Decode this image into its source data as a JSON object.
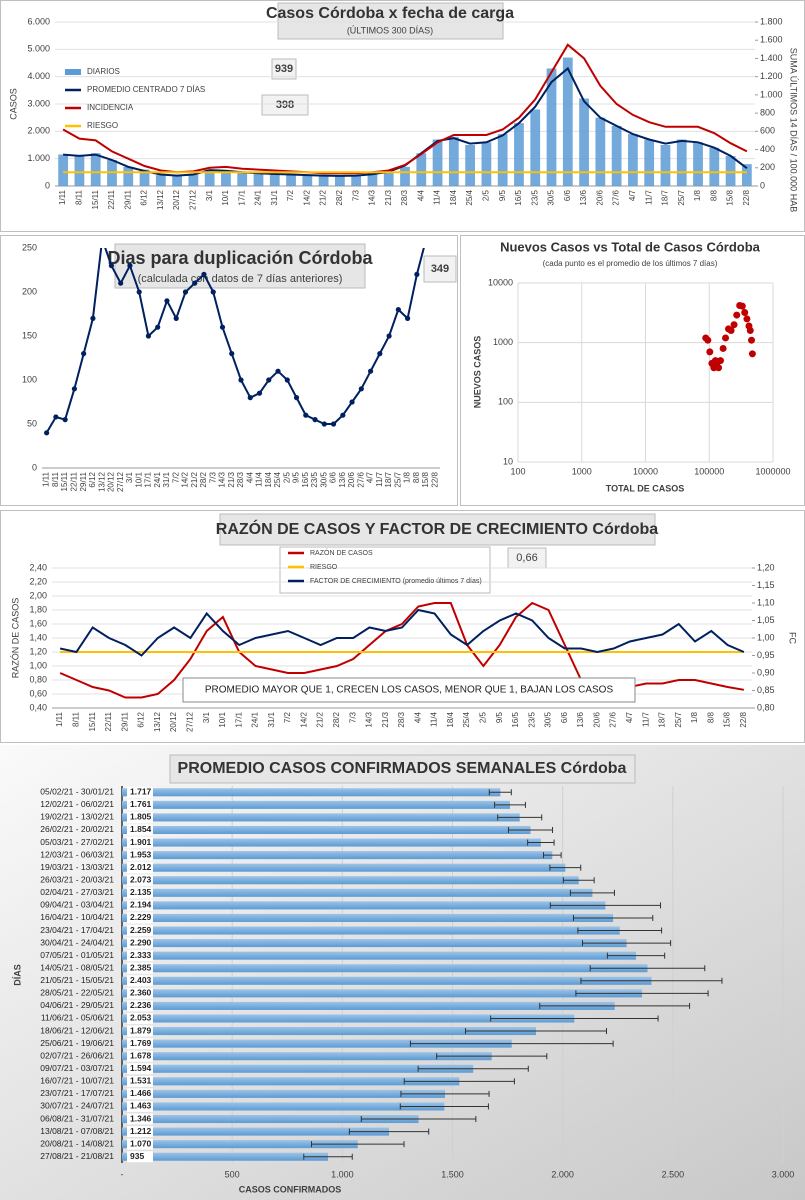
{
  "chart_data": [
    {
      "type": "bar",
      "title": "Casos  Córdoba  x fecha de carga",
      "subtitle": "(ÚLTIMOS 300 DÍAS)",
      "ylabel": "CASOS",
      "y2label": "SUMA  ÚLTIMOS 14 DÍAS / 100.000 HAB",
      "annotations": [
        "939",
        "398"
      ],
      "grid": true,
      "categories": [
        "1/11",
        "8/11",
        "15/11",
        "22/11",
        "29/11",
        "6/12",
        "13/12",
        "20/12",
        "27/12",
        "3/1",
        "10/1",
        "17/1",
        "24/1",
        "31/1",
        "7/2",
        "14/2",
        "21/2",
        "28/2",
        "7/3",
        "14/3",
        "21/3",
        "28/3",
        "4/4",
        "11/4",
        "18/4",
        "25/4",
        "2/5",
        "9/5",
        "16/5",
        "23/5",
        "30/5",
        "6/6",
        "13/6",
        "20/6",
        "27/6",
        "4/7",
        "11/7",
        "18/7",
        "25/7",
        "1/8",
        "8/8",
        "15/8",
        "22/8"
      ],
      "ylim": [
        0,
        6000
      ],
      "yticks": [
        0,
        {
          "value": 1000,
          "label": "1.000"
        },
        {
          "value": 2000,
          "label": "2.000"
        },
        {
          "value": 3000,
          "label": "3.000"
        },
        {
          "value": 4000,
          "label": "4.000"
        },
        {
          "value": 5000,
          "label": "5.000"
        },
        {
          "value": 6000,
          "label": "6.000"
        }
      ],
      "y2lim": [
        0,
        1800
      ],
      "y2ticks": [
        0,
        200,
        400,
        600,
        800,
        {
          "value": 1000,
          "label": "1.000"
        },
        {
          "value": 1200,
          "label": "1.200"
        },
        {
          "value": 1400,
          "label": "1.400"
        },
        {
          "value": 1600,
          "label": "1.600"
        },
        {
          "value": 1800,
          "label": "1.800"
        }
      ],
      "series": [
        {
          "name": "DIARIOS",
          "type": "bar",
          "color": "#5b9bd5",
          "values": [
            1150,
            1100,
            1200,
            950,
            700,
            600,
            400,
            380,
            420,
            600,
            550,
            500,
            480,
            450,
            420,
            400,
            380,
            360,
            380,
            420,
            500,
            700,
            1200,
            1700,
            1800,
            1500,
            1600,
            1900,
            2300,
            2800,
            4300,
            4700,
            3200,
            2500,
            2200,
            1900,
            1700,
            1500,
            1700,
            1600,
            1400,
            1100,
            800
          ]
        },
        {
          "name": "PROMEDIO CENTRADO 7 DÍAS",
          "type": "line",
          "color": "#002060",
          "values": [
            1150,
            1100,
            1150,
            950,
            700,
            550,
            420,
            380,
            420,
            580,
            560,
            500,
            470,
            440,
            420,
            400,
            380,
            370,
            380,
            430,
            520,
            750,
            1200,
            1650,
            1750,
            1550,
            1600,
            1850,
            2300,
            2900,
            3800,
            4300,
            3100,
            2500,
            2200,
            1900,
            1700,
            1550,
            1650,
            1600,
            1400,
            1100,
            650
          ]
        },
        {
          "name": "INCIDENCIA",
          "type": "line",
          "color": "#c00000",
          "axis": "y2",
          "values": [
            620,
            520,
            500,
            380,
            300,
            220,
            170,
            150,
            160,
            200,
            210,
            190,
            180,
            170,
            160,
            150,
            140,
            140,
            140,
            150,
            170,
            230,
            350,
            480,
            560,
            560,
            560,
            620,
            750,
            950,
            1250,
            1550,
            1400,
            1100,
            900,
            780,
            700,
            650,
            650,
            650,
            580,
            470,
            380
          ]
        },
        {
          "name": "RIESGO",
          "type": "line",
          "color": "#ffc000",
          "values": [
            500,
            500,
            500,
            500,
            500,
            500,
            500,
            500,
            500,
            500,
            500,
            500,
            500,
            500,
            500,
            500,
            500,
            500,
            500,
            500,
            500,
            500,
            500,
            500,
            500,
            500,
            500,
            500,
            500,
            500,
            500,
            500,
            500,
            500,
            500,
            500,
            500,
            500,
            500,
            500,
            500,
            500,
            500
          ]
        }
      ]
    },
    {
      "type": "line",
      "title": "Dias para duplicación Córdoba",
      "subtitle": "(calculada con datos de 7 días anteriores)",
      "annotations": [
        "349"
      ],
      "grid": false,
      "categories": [
        "1/11",
        "8/11",
        "15/11",
        "22/11",
        "29/11",
        "6/12",
        "13/12",
        "20/12",
        "27/12",
        "3/1",
        "10/1",
        "17/1",
        "24/1",
        "31/1",
        "7/2",
        "14/2",
        "21/2",
        "28/2",
        "7/3",
        "14/3",
        "21/3",
        "28/3",
        "4/4",
        "11/4",
        "18/4",
        "25/4",
        "2/5",
        "9/5",
        "16/5",
        "23/5",
        "30/5",
        "6/6",
        "13/6",
        "20/6",
        "27/6",
        "4/7",
        "11/7",
        "18/7",
        "25/7",
        "1/8",
        "8/8",
        "15/8",
        "22/8"
      ],
      "ylim": [
        0,
        250
      ],
      "yticks": [
        0,
        50,
        100,
        150,
        200,
        250
      ],
      "series": [
        {
          "type": "line",
          "markers": true,
          "color": "#002060",
          "values": [
            40,
            58,
            55,
            90,
            130,
            170,
            260,
            230,
            210,
            230,
            200,
            150,
            160,
            190,
            170,
            200,
            210,
            220,
            200,
            160,
            130,
            100,
            80,
            85,
            100,
            110,
            100,
            80,
            60,
            55,
            50,
            50,
            60,
            75,
            90,
            110,
            130,
            150,
            180,
            170,
            220,
            260,
            260
          ]
        }
      ]
    },
    {
      "type": "scatter",
      "title": "Nuevos Casos vs Total de Casos Córdoba",
      "subtitle": "(cada punto es el promedio de los últimos 7 días)",
      "xlabel": "TOTAL DE CASOS",
      "ylabel": "NUEVOS CASOS",
      "log": true,
      "grid": true,
      "color": "#c00000",
      "xlim": [
        100,
        1000000
      ],
      "xticks": [
        100,
        1000,
        10000,
        100000,
        1000000
      ],
      "ylim": [
        10,
        10000
      ],
      "yticks": [
        10,
        100,
        1000,
        10000
      ],
      "x": [
        88000,
        95000,
        102000,
        110000,
        118000,
        125000,
        130000,
        140000,
        150000,
        165000,
        180000,
        200000,
        220000,
        245000,
        270000,
        300000,
        330000,
        360000,
        390000,
        420000,
        440000,
        460000,
        475000
      ],
      "values": [
        1200,
        1100,
        700,
        450,
        380,
        500,
        420,
        380,
        500,
        800,
        1200,
        1700,
        1600,
        2000,
        2900,
        4200,
        4100,
        3200,
        2500,
        1900,
        1600,
        1100,
        650
      ]
    },
    {
      "type": "line",
      "title": "RAZÓN DE CASOS Y FACTOR DE CRECIMIENTO Córdoba",
      "ylabel": "RAZÓN DE CASOS",
      "y2label": "FC",
      "annotations": [
        "0,66",
        "PROMEDIO MAYOR QUE 1, CRECEN LOS CASOS, MENOR QUE 1, BAJAN LOS CASOS"
      ],
      "grid": true,
      "categories": [
        "1/11",
        "8/11",
        "15/11",
        "22/11",
        "29/11",
        "6/12",
        "13/12",
        "20/12",
        "27/12",
        "3/1",
        "10/1",
        "17/1",
        "24/1",
        "31/1",
        "7/2",
        "14/2",
        "21/2",
        "28/2",
        "7/3",
        "14/3",
        "21/3",
        "28/3",
        "4/4",
        "11/4",
        "18/4",
        "25/4",
        "2/5",
        "9/5",
        "16/5",
        "23/5",
        "30/5",
        "6/6",
        "13/6",
        "20/6",
        "27/6",
        "4/7",
        "11/7",
        "18/7",
        "25/7",
        "1/8",
        "8/8",
        "15/8",
        "22/8"
      ],
      "ylim": [
        0.4,
        2.4
      ],
      "yticks": [
        {
          "value": 0.4,
          "label": "0,40"
        },
        {
          "value": 0.6,
          "label": "0,60"
        },
        {
          "value": 0.8,
          "label": "0,80"
        },
        {
          "value": 1.0,
          "label": "1,00"
        },
        {
          "value": 1.2,
          "label": "1,20"
        },
        {
          "value": 1.4,
          "label": "1,40"
        },
        {
          "value": 1.6,
          "label": "1,60"
        },
        {
          "value": 1.8,
          "label": "1,80"
        },
        {
          "value": 2.0,
          "label": "2,00"
        },
        {
          "value": 2.2,
          "label": "2,20"
        },
        {
          "value": 2.4,
          "label": "2,40"
        }
      ],
      "y2lim": [
        0.8,
        1.2
      ],
      "y2ticks": [
        {
          "value": 0.8,
          "label": "0,80"
        },
        {
          "value": 0.85,
          "label": "0,85"
        },
        {
          "value": 0.9,
          "label": "0,90"
        },
        {
          "value": 0.95,
          "label": "0,95"
        },
        {
          "value": 1.0,
          "label": "1,00"
        },
        {
          "value": 1.05,
          "label": "1,05"
        },
        {
          "value": 1.1,
          "label": "1,10"
        },
        {
          "value": 1.15,
          "label": "1,15"
        },
        {
          "value": 1.2,
          "label": "1,20"
        }
      ],
      "series": [
        {
          "name": "RAZÓN DE CASOS",
          "type": "line",
          "color": "#c00000",
          "values": [
            0.9,
            0.8,
            0.7,
            0.65,
            0.55,
            0.55,
            0.6,
            0.8,
            1.1,
            1.5,
            1.7,
            1.2,
            1.0,
            0.95,
            0.9,
            0.9,
            0.95,
            1.0,
            1.1,
            1.3,
            1.5,
            1.6,
            1.85,
            1.9,
            1.9,
            1.3,
            1.0,
            1.3,
            1.7,
            1.9,
            1.8,
            1.3,
            0.8,
            0.7,
            0.65,
            0.7,
            0.75,
            0.75,
            0.8,
            0.8,
            0.75,
            0.7,
            0.66
          ]
        },
        {
          "name": "RIESGO",
          "type": "line",
          "color": "#ffc000",
          "values": [
            1.2,
            1.2,
            1.2,
            1.2,
            1.2,
            1.2,
            1.2,
            1.2,
            1.2,
            1.2,
            1.2,
            1.2,
            1.2,
            1.2,
            1.2,
            1.2,
            1.2,
            1.2,
            1.2,
            1.2,
            1.2,
            1.2,
            1.2,
            1.2,
            1.2,
            1.2,
            1.2,
            1.2,
            1.2,
            1.2,
            1.2,
            1.2,
            1.2,
            1.2,
            1.2,
            1.2,
            1.2,
            1.2,
            1.2,
            1.2,
            1.2,
            1.2,
            1.2
          ]
        },
        {
          "name": "FACTOR DE CRECIMIENTO (promedio últimos 7 días)",
          "type": "line",
          "color": "#002060",
          "axis": "y2",
          "values": [
            0.97,
            0.96,
            1.03,
            1.0,
            0.98,
            0.95,
            1.0,
            1.03,
            1.0,
            1.07,
            1.02,
            0.98,
            1.0,
            1.01,
            1.02,
            1.0,
            0.98,
            1.0,
            1.0,
            1.03,
            1.02,
            1.03,
            1.08,
            1.07,
            1.01,
            0.98,
            1.02,
            1.05,
            1.07,
            1.05,
            1.0,
            0.97,
            0.97,
            0.96,
            0.97,
            0.99,
            1.0,
            1.01,
            1.04,
            0.99,
            1.02,
            0.98,
            0.96
          ]
        }
      ]
    },
    {
      "type": "hbar",
      "title": "PROMEDIO CASOS CONFIRMADOS SEMANALES Córdoba",
      "xlabel": "CASOS CONFIRMADOS",
      "ylabel": "DÍAS",
      "grid": true,
      "color": "#5b9bd5",
      "categories": [
        "05/02/21 - 30/01/21",
        "12/02/21 - 06/02/21",
        "19/02/21 - 13/02/21",
        "26/02/21 - 20/02/21",
        "05/03/21 - 27/02/21",
        "12/03/21 - 06/03/21",
        "19/03/21 - 13/03/21",
        "26/03/21 - 20/03/21",
        "02/04/21 - 27/03/21",
        "09/04/21 - 03/04/21",
        "16/04/21 - 10/04/21",
        "23/04/21 - 17/04/21",
        "30/04/21 - 24/04/21",
        "07/05/21 - 01/05/21",
        "14/05/21 - 08/05/21",
        "21/05/21 - 15/05/21",
        "28/05/21 - 22/05/21",
        "04/06/21 - 29/05/21",
        "11/06/21 - 05/06/21",
        "18/06/21 - 12/06/21",
        "25/06/21 - 19/06/21",
        "02/07/21 - 26/06/21",
        "09/07/21 - 03/07/21",
        "16/07/21 - 10/07/21",
        "23/07/21 - 17/07/21",
        "30/07/21 - 24/07/21",
        "06/08/21 - 31/07/21",
        "13/08/21 - 07/08/21",
        "20/08/21 - 14/08/21",
        "27/08/21 - 21/08/21"
      ],
      "values": [
        1717,
        1761,
        1805,
        1854,
        1901,
        1953,
        2012,
        2073,
        2135,
        2194,
        2229,
        2259,
        2290,
        2333,
        2385,
        2403,
        2360,
        2236,
        2053,
        1879,
        1769,
        1678,
        1594,
        1531,
        1466,
        1463,
        1346,
        1212,
        1070,
        935
      ],
      "value_labels": [
        "1.717",
        "1.761",
        "1.805",
        "1.854",
        "1.901",
        "1.953",
        "2.012",
        "2.073",
        "2.135",
        "2.194",
        "2.229",
        "2.259",
        "2.290",
        "2.333",
        "2.385",
        "2.403",
        "2.360",
        "2.236",
        "2.053",
        "1.879",
        "1.769",
        "1.678",
        "1.594",
        "1.531",
        "1.466",
        "1.463",
        "1.346",
        "1.212",
        "1.070",
        "935"
      ],
      "errors": [
        50,
        70,
        100,
        100,
        60,
        40,
        70,
        70,
        100,
        250,
        180,
        190,
        200,
        130,
        260,
        320,
        300,
        340,
        380,
        320,
        460,
        250,
        250,
        250,
        200,
        200,
        260,
        180,
        210,
        110
      ],
      "xlim": [
        0,
        3000
      ],
      "xticks": [
        {
          "value": 0,
          "label": "-"
        },
        500,
        {
          "value": 1000,
          "label": "1.000"
        },
        {
          "value": 1500,
          "label": "1.500"
        },
        {
          "value": 2000,
          "label": "2.000"
        },
        {
          "value": 2500,
          "label": "2.500"
        },
        {
          "value": 3000,
          "label": "3.000"
        }
      ]
    }
  ]
}
